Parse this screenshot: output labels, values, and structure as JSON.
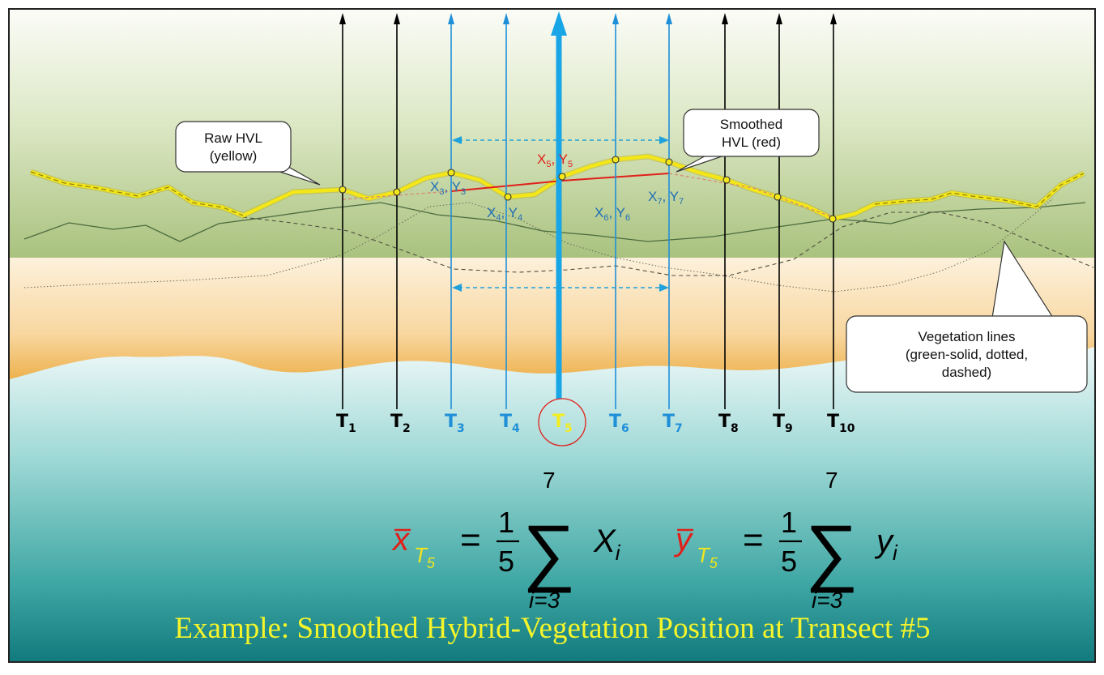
{
  "transects": [
    {
      "letter": "T",
      "sub": "1",
      "group": "outer"
    },
    {
      "letter": "T",
      "sub": "2",
      "group": "outer"
    },
    {
      "letter": "T",
      "sub": "3",
      "group": "window"
    },
    {
      "letter": "T",
      "sub": "4",
      "group": "window"
    },
    {
      "letter": "T",
      "sub": "5",
      "group": "target"
    },
    {
      "letter": "T",
      "sub": "6",
      "group": "window"
    },
    {
      "letter": "T",
      "sub": "7",
      "group": "window"
    },
    {
      "letter": "T",
      "sub": "8",
      "group": "outer"
    },
    {
      "letter": "T",
      "sub": "9",
      "group": "outer"
    },
    {
      "letter": "T",
      "sub": "10",
      "group": "outer"
    }
  ],
  "point_labels": [
    {
      "x": "X",
      "xsub": "3",
      "sep": ", ",
      "y": "Y",
      "ysub": "3",
      "color": "#1f6fb4"
    },
    {
      "x": "X",
      "xsub": "4",
      "sep": ", ",
      "y": "Y",
      "ysub": "4",
      "color": "#1f6fb4"
    },
    {
      "x": "X",
      "xsub": "5",
      "sep": ", ",
      "y": "Y",
      "ysub": "5",
      "color": "#e0201b"
    },
    {
      "x": "X",
      "xsub": "6",
      "sep": ", ",
      "y": "Y",
      "ysub": "6",
      "color": "#1f6fb4"
    },
    {
      "x": "X",
      "xsub": "7",
      "sep": ", ",
      "y": "Y",
      "ysub": "7",
      "color": "#1f6fb4"
    }
  ],
  "callouts": {
    "raw_hvl": [
      "Raw HVL",
      "(yellow)"
    ],
    "smoothed_hvl": [
      "Smoothed",
      "HVL (red)"
    ],
    "vegetation": [
      "Vegetation lines",
      "(green-solid, dotted,",
      "dashed)"
    ]
  },
  "formulas": {
    "x": {
      "var": "x",
      "sub": "T",
      "subsub": "5",
      "eq": "=",
      "num": "1",
      "den": "5",
      "upper": "7",
      "lower": "i=3",
      "term": "X",
      "term_sub": "i"
    },
    "y": {
      "var": "y",
      "sub": "T",
      "subsub": "5",
      "eq": "=",
      "num": "1",
      "den": "5",
      "upper": "7",
      "lower": "i=3",
      "term": "y",
      "term_sub": "i"
    }
  },
  "caption": "Example: Smoothed Hybrid-Vegetation Position at Transect #5",
  "colors": {
    "raw_hvl": "#f3e619",
    "smoothed_hvl": "#e0201b",
    "window_transect": "#1f8fd8",
    "target_transect": "#18a6e6",
    "outer_transect": "#000000",
    "caption": "#f5f52a",
    "target_label": "#f2ec22"
  }
}
